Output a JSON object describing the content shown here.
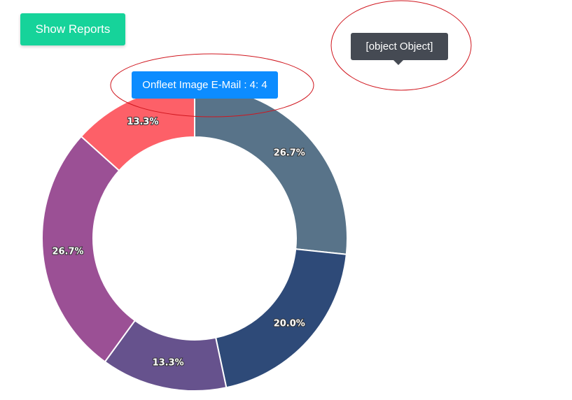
{
  "toolbar": {
    "show_reports_label": "Show Reports"
  },
  "tooltip": {
    "text": "Onfleet Image E-Mail : 4:  4"
  },
  "object_tooltip": {
    "text": "[object Object]"
  },
  "chart_data": {
    "type": "pie",
    "donut": true,
    "start_angle_deg": 0,
    "direction": "clockwise",
    "slices": [
      {
        "value": 4,
        "label": "26.7%",
        "color": "#587389"
      },
      {
        "value": 3,
        "label": "20.0%",
        "color": "#2e4a78"
      },
      {
        "value": 2,
        "label": "13.3%",
        "color": "#66528d"
      },
      {
        "value": 4,
        "label": "26.7%",
        "color": "#9b5095"
      },
      {
        "value": 2,
        "label": "13.3%",
        "color": "#fd6068"
      }
    ],
    "highlighted_series": "Onfleet Image E-Mail",
    "highlighted_value": 4
  },
  "colors": {
    "button": "#16d39a",
    "tooltip": "#0c8cff",
    "object_tooltip": "#454a53",
    "annotation": "#d0161e"
  }
}
